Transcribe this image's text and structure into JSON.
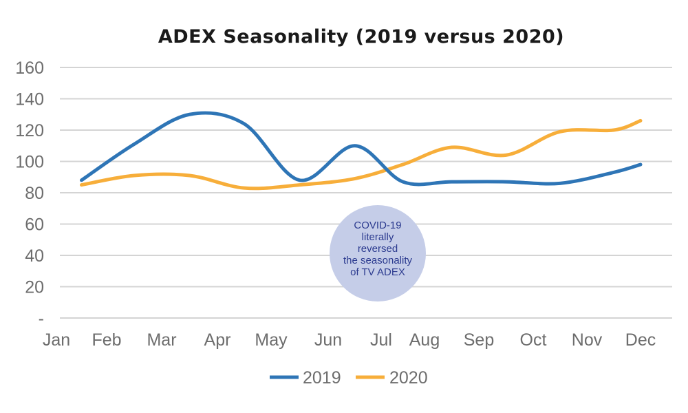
{
  "chart_data": {
    "type": "line",
    "title": "ADEX Seasonality (2019 versus 2020)",
    "xlabel": "",
    "ylabel": "",
    "categories": [
      "Jan",
      "Feb",
      "Mar",
      "Apr",
      "May",
      "Jun",
      "Jul",
      "Aug",
      "Sep",
      "Oct",
      "Nov",
      "Dec"
    ],
    "y_tick_labels": [
      "-",
      "20",
      "40",
      "60",
      "80",
      "100",
      "120",
      "140",
      "160"
    ],
    "ylim": [
      0,
      160
    ],
    "grid": "horizontal",
    "legend_position": "bottom-center",
    "series": [
      {
        "name": "2019",
        "color": "#2e75b6",
        "x": [
          0.5,
          1.5,
          2.5,
          3.5,
          4.5,
          5.5,
          6.5,
          7.5,
          8.5,
          9.5,
          10.5,
          11.5
        ],
        "values": [
          88,
          111,
          130,
          124,
          88,
          110,
          87,
          87,
          87,
          86,
          93,
          98
        ]
      },
      {
        "name": "2020",
        "color": "#f7ae3a",
        "x": [
          0.5,
          1.5,
          2.5,
          3.5,
          4.5,
          5.5,
          6.5,
          7.5,
          8.5,
          9.5,
          10.5,
          11.5
        ],
        "values": [
          85,
          91,
          91,
          83,
          85,
          89,
          98,
          109,
          104,
          119,
          120,
          126
        ]
      }
    ],
    "annotation": {
      "lines": [
        "COVID-19",
        "literally",
        "reversed",
        "the seasonality",
        "of TV ADEX"
      ],
      "fill_color": "#c5cde8",
      "text_color": "#2b3a8f"
    }
  }
}
